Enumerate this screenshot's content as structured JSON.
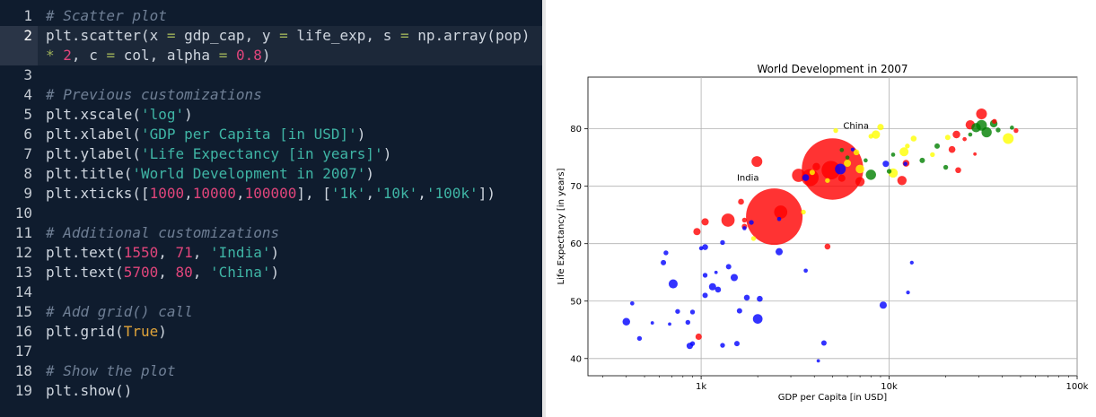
{
  "editor": {
    "lines": [
      {
        "n": "1",
        "tokens": [
          [
            "comment",
            "# Scatter plot"
          ]
        ]
      },
      {
        "n": "2",
        "active": true,
        "tokens": [
          [
            "plain",
            "plt.scatter("
          ],
          [
            "plain",
            "x "
          ],
          [
            "op",
            "="
          ],
          [
            "plain",
            " gdp_cap, y "
          ],
          [
            "op",
            "="
          ],
          [
            "plain",
            " life_exp, s "
          ],
          [
            "op",
            "="
          ],
          [
            "plain",
            " np.array(pop)"
          ]
        ]
      },
      {
        "n": "",
        "active": true,
        "tokens": [
          [
            "op",
            "*"
          ],
          [
            "plain",
            " "
          ],
          [
            "num",
            "2"
          ],
          [
            "plain",
            ", c "
          ],
          [
            "op",
            "="
          ],
          [
            "plain",
            " col, alpha "
          ],
          [
            "op",
            "="
          ],
          [
            "plain",
            " "
          ],
          [
            "num",
            "0.8"
          ],
          [
            "plain",
            ")"
          ]
        ]
      },
      {
        "n": "3",
        "tokens": []
      },
      {
        "n": "4",
        "tokens": [
          [
            "comment",
            "# Previous customizations"
          ]
        ]
      },
      {
        "n": "5",
        "tokens": [
          [
            "plain",
            "plt.xscale("
          ],
          [
            "str",
            "'log'"
          ],
          [
            "plain",
            ")"
          ]
        ]
      },
      {
        "n": "6",
        "tokens": [
          [
            "plain",
            "plt.xlabel("
          ],
          [
            "str",
            "'GDP per Capita [in USD]'"
          ],
          [
            "plain",
            ")"
          ]
        ]
      },
      {
        "n": "7",
        "tokens": [
          [
            "plain",
            "plt.ylabel("
          ],
          [
            "str",
            "'Life Expectancy [in years]'"
          ],
          [
            "plain",
            ")"
          ]
        ]
      },
      {
        "n": "8",
        "tokens": [
          [
            "plain",
            "plt.title("
          ],
          [
            "str",
            "'World Development in 2007'"
          ],
          [
            "plain",
            ")"
          ]
        ]
      },
      {
        "n": "9",
        "tokens": [
          [
            "plain",
            "plt.xticks(["
          ],
          [
            "num",
            "1000"
          ],
          [
            "plain",
            ","
          ],
          [
            "num",
            "10000"
          ],
          [
            "plain",
            ","
          ],
          [
            "num",
            "100000"
          ],
          [
            "plain",
            "], ["
          ],
          [
            "str",
            "'1k'"
          ],
          [
            "plain",
            ","
          ],
          [
            "str",
            "'10k'"
          ],
          [
            "plain",
            ","
          ],
          [
            "str",
            "'100k'"
          ],
          [
            "plain",
            "])"
          ]
        ]
      },
      {
        "n": "10",
        "tokens": []
      },
      {
        "n": "11",
        "tokens": [
          [
            "comment",
            "# Additional customizations"
          ]
        ]
      },
      {
        "n": "12",
        "tokens": [
          [
            "plain",
            "plt.text("
          ],
          [
            "num",
            "1550"
          ],
          [
            "plain",
            ", "
          ],
          [
            "num",
            "71"
          ],
          [
            "plain",
            ", "
          ],
          [
            "str",
            "'India'"
          ],
          [
            "plain",
            ")"
          ]
        ]
      },
      {
        "n": "13",
        "tokens": [
          [
            "plain",
            "plt.text("
          ],
          [
            "num",
            "5700"
          ],
          [
            "plain",
            ", "
          ],
          [
            "num",
            "80"
          ],
          [
            "plain",
            ", "
          ],
          [
            "str",
            "'China'"
          ],
          [
            "plain",
            ")"
          ]
        ]
      },
      {
        "n": "14",
        "tokens": []
      },
      {
        "n": "15",
        "tokens": [
          [
            "comment",
            "# Add grid() call"
          ]
        ]
      },
      {
        "n": "16",
        "tokens": [
          [
            "plain",
            "plt.grid("
          ],
          [
            "kw",
            "True"
          ],
          [
            "plain",
            ")"
          ]
        ]
      },
      {
        "n": "17",
        "tokens": []
      },
      {
        "n": "18",
        "tokens": [
          [
            "comment",
            "# Show the plot"
          ]
        ]
      },
      {
        "n": "19",
        "tokens": [
          [
            "plain",
            "plt.show()"
          ]
        ]
      }
    ]
  },
  "chart_data": {
    "type": "scatter",
    "title": "World Development in 2007",
    "xlabel": "GDP per Capita [in USD]",
    "ylabel": "Life Expectancy [in years]",
    "xscale": "log",
    "xlim": [
      250,
      100000
    ],
    "ylim": [
      37,
      89
    ],
    "xticks": [
      1000,
      10000,
      100000
    ],
    "xtick_labels": [
      "1k",
      "10k",
      "100k"
    ],
    "yticks": [
      40,
      50,
      60,
      70,
      80
    ],
    "grid": true,
    "annotations": [
      {
        "text": "India",
        "x": 1550,
        "y": 71
      },
      {
        "text": "China",
        "x": 5700,
        "y": 80
      }
    ],
    "colors": {
      "red": "#ff0000",
      "blue": "#0000ff",
      "green": "#008000",
      "yellow": "#ffff00"
    },
    "points": [
      {
        "x": 2450,
        "y": 64.7,
        "s": 1100,
        "c": "red"
      },
      {
        "x": 5000,
        "y": 73.0,
        "s": 1300,
        "c": "red"
      },
      {
        "x": 4900,
        "y": 72.8,
        "s": 120,
        "c": "red"
      },
      {
        "x": 2650,
        "y": 65.5,
        "s": 60,
        "c": "red"
      },
      {
        "x": 1980,
        "y": 74.3,
        "s": 40,
        "c": "red"
      },
      {
        "x": 3300,
        "y": 71.9,
        "s": 60,
        "c": "red"
      },
      {
        "x": 3800,
        "y": 71.5,
        "s": 100,
        "c": "red"
      },
      {
        "x": 4100,
        "y": 73.4,
        "s": 20,
        "c": "red"
      },
      {
        "x": 5600,
        "y": 71.4,
        "s": 18,
        "c": "red"
      },
      {
        "x": 7000,
        "y": 70.8,
        "s": 30,
        "c": "red"
      },
      {
        "x": 11700,
        "y": 71.0,
        "s": 30,
        "c": "red"
      },
      {
        "x": 12300,
        "y": 74.0,
        "s": 16,
        "c": "red"
      },
      {
        "x": 1390,
        "y": 64.1,
        "s": 60,
        "c": "red"
      },
      {
        "x": 1630,
        "y": 67.3,
        "s": 12,
        "c": "red"
      },
      {
        "x": 1050,
        "y": 63.8,
        "s": 18,
        "c": "red"
      },
      {
        "x": 950,
        "y": 62.1,
        "s": 18,
        "c": "red"
      },
      {
        "x": 4700,
        "y": 59.5,
        "s": 12,
        "c": "red"
      },
      {
        "x": 970,
        "y": 43.8,
        "s": 14,
        "c": "red"
      },
      {
        "x": 1700,
        "y": 63.0,
        "s": 10,
        "c": "red"
      },
      {
        "x": 1700,
        "y": 64.1,
        "s": 8,
        "c": "red"
      },
      {
        "x": 31000,
        "y": 82.6,
        "s": 40,
        "c": "red"
      },
      {
        "x": 27000,
        "y": 80.7,
        "s": 30,
        "c": "red"
      },
      {
        "x": 22800,
        "y": 79.0,
        "s": 20,
        "c": "red"
      },
      {
        "x": 21600,
        "y": 76.4,
        "s": 16,
        "c": "red"
      },
      {
        "x": 23300,
        "y": 72.8,
        "s": 12,
        "c": "red"
      },
      {
        "x": 36300,
        "y": 81.3,
        "s": 8,
        "c": "red"
      },
      {
        "x": 25200,
        "y": 78.2,
        "s": 6,
        "c": "red"
      },
      {
        "x": 28600,
        "y": 75.6,
        "s": 4,
        "c": "red"
      },
      {
        "x": 47300,
        "y": 79.7,
        "s": 8,
        "c": "red"
      },
      {
        "x": 400,
        "y": 46.4,
        "s": 20,
        "c": "blue"
      },
      {
        "x": 470,
        "y": 43.5,
        "s": 8,
        "c": "blue"
      },
      {
        "x": 430,
        "y": 49.6,
        "s": 6,
        "c": "blue"
      },
      {
        "x": 710,
        "y": 53.0,
        "s": 28,
        "c": "blue"
      },
      {
        "x": 630,
        "y": 56.7,
        "s": 10,
        "c": "blue"
      },
      {
        "x": 650,
        "y": 58.4,
        "s": 8,
        "c": "blue"
      },
      {
        "x": 1050,
        "y": 59.4,
        "s": 12,
        "c": "blue"
      },
      {
        "x": 1150,
        "y": 52.5,
        "s": 18,
        "c": "blue"
      },
      {
        "x": 1230,
        "y": 52.0,
        "s": 12,
        "c": "blue"
      },
      {
        "x": 1050,
        "y": 51.0,
        "s": 10,
        "c": "blue"
      },
      {
        "x": 1500,
        "y": 54.1,
        "s": 18,
        "c": "blue"
      },
      {
        "x": 1400,
        "y": 56.0,
        "s": 10,
        "c": "blue"
      },
      {
        "x": 1300,
        "y": 60.2,
        "s": 8,
        "c": "blue"
      },
      {
        "x": 1050,
        "y": 54.5,
        "s": 8,
        "c": "blue"
      },
      {
        "x": 1600,
        "y": 48.3,
        "s": 10,
        "c": "blue"
      },
      {
        "x": 1750,
        "y": 50.6,
        "s": 12,
        "c": "blue"
      },
      {
        "x": 2050,
        "y": 50.4,
        "s": 12,
        "c": "blue"
      },
      {
        "x": 2000,
        "y": 46.9,
        "s": 32,
        "c": "blue"
      },
      {
        "x": 1550,
        "y": 42.6,
        "s": 10,
        "c": "blue"
      },
      {
        "x": 1300,
        "y": 42.3,
        "s": 8,
        "c": "blue"
      },
      {
        "x": 870,
        "y": 42.2,
        "s": 14,
        "c": "blue"
      },
      {
        "x": 900,
        "y": 42.6,
        "s": 8,
        "c": "blue"
      },
      {
        "x": 850,
        "y": 46.3,
        "s": 8,
        "c": "blue"
      },
      {
        "x": 750,
        "y": 48.2,
        "s": 8,
        "c": "blue"
      },
      {
        "x": 900,
        "y": 48.1,
        "s": 8,
        "c": "blue"
      },
      {
        "x": 2600,
        "y": 58.6,
        "s": 18,
        "c": "blue"
      },
      {
        "x": 3600,
        "y": 55.3,
        "s": 6,
        "c": "blue"
      },
      {
        "x": 4500,
        "y": 42.7,
        "s": 10,
        "c": "blue"
      },
      {
        "x": 9300,
        "y": 49.3,
        "s": 18,
        "c": "blue"
      },
      {
        "x": 5500,
        "y": 73.0,
        "s": 40,
        "c": "blue"
      },
      {
        "x": 3600,
        "y": 71.5,
        "s": 16,
        "c": "blue"
      },
      {
        "x": 9600,
        "y": 73.9,
        "s": 14,
        "c": "blue"
      },
      {
        "x": 1850,
        "y": 63.7,
        "s": 8,
        "c": "blue"
      },
      {
        "x": 1700,
        "y": 62.7,
        "s": 6,
        "c": "blue"
      },
      {
        "x": 1000,
        "y": 59.2,
        "s": 6,
        "c": "blue"
      },
      {
        "x": 2600,
        "y": 64.3,
        "s": 6,
        "c": "blue"
      },
      {
        "x": 12600,
        "y": 51.5,
        "s": 5,
        "c": "blue"
      },
      {
        "x": 13200,
        "y": 56.7,
        "s": 5,
        "c": "blue"
      },
      {
        "x": 6400,
        "y": 76.4,
        "s": 5,
        "c": "blue"
      },
      {
        "x": 12200,
        "y": 73.9,
        "s": 6,
        "c": "blue"
      },
      {
        "x": 4200,
        "y": 39.6,
        "s": 4,
        "c": "blue"
      },
      {
        "x": 680,
        "y": 46.0,
        "s": 4,
        "c": "blue"
      },
      {
        "x": 550,
        "y": 46.2,
        "s": 4,
        "c": "blue"
      },
      {
        "x": 1200,
        "y": 55.0,
        "s": 4,
        "c": "blue"
      },
      {
        "x": 8000,
        "y": 72.0,
        "s": 36,
        "c": "green"
      },
      {
        "x": 31000,
        "y": 80.6,
        "s": 40,
        "c": "green"
      },
      {
        "x": 33000,
        "y": 79.4,
        "s": 36,
        "c": "green"
      },
      {
        "x": 29000,
        "y": 80.2,
        "s": 30,
        "c": "green"
      },
      {
        "x": 36000,
        "y": 80.9,
        "s": 20,
        "c": "green"
      },
      {
        "x": 18000,
        "y": 77.0,
        "s": 10,
        "c": "green"
      },
      {
        "x": 15000,
        "y": 74.5,
        "s": 10,
        "c": "green"
      },
      {
        "x": 20000,
        "y": 73.3,
        "s": 8,
        "c": "green"
      },
      {
        "x": 10000,
        "y": 72.6,
        "s": 8,
        "c": "green"
      },
      {
        "x": 5600,
        "y": 76.3,
        "s": 6,
        "c": "green"
      },
      {
        "x": 7500,
        "y": 74.5,
        "s": 6,
        "c": "green"
      },
      {
        "x": 10500,
        "y": 75.5,
        "s": 6,
        "c": "green"
      },
      {
        "x": 38000,
        "y": 79.8,
        "s": 8,
        "c": "green"
      },
      {
        "x": 45000,
        "y": 80.2,
        "s": 6,
        "c": "green"
      },
      {
        "x": 27000,
        "y": 79.0,
        "s": 6,
        "c": "green"
      },
      {
        "x": 6000,
        "y": 75.0,
        "s": 6,
        "c": "green"
      },
      {
        "x": 43000,
        "y": 78.3,
        "s": 40,
        "c": "yellow"
      },
      {
        "x": 12000,
        "y": 76.0,
        "s": 28,
        "c": "yellow"
      },
      {
        "x": 10500,
        "y": 72.3,
        "s": 30,
        "c": "yellow"
      },
      {
        "x": 7000,
        "y": 73.0,
        "s": 26,
        "c": "yellow"
      },
      {
        "x": 6000,
        "y": 74.0,
        "s": 18,
        "c": "yellow"
      },
      {
        "x": 8500,
        "y": 79.0,
        "s": 24,
        "c": "yellow"
      },
      {
        "x": 9000,
        "y": 80.3,
        "s": 14,
        "c": "yellow"
      },
      {
        "x": 13500,
        "y": 78.3,
        "s": 12,
        "c": "yellow"
      },
      {
        "x": 6700,
        "y": 75.9,
        "s": 12,
        "c": "yellow"
      },
      {
        "x": 3900,
        "y": 72.4,
        "s": 10,
        "c": "yellow"
      },
      {
        "x": 3500,
        "y": 65.5,
        "s": 8,
        "c": "yellow"
      },
      {
        "x": 1900,
        "y": 60.9,
        "s": 8,
        "c": "yellow"
      },
      {
        "x": 4700,
        "y": 71.0,
        "s": 8,
        "c": "yellow"
      },
      {
        "x": 17000,
        "y": 75.5,
        "s": 8,
        "c": "yellow"
      },
      {
        "x": 20500,
        "y": 78.5,
        "s": 10,
        "c": "yellow"
      },
      {
        "x": 12500,
        "y": 77.0,
        "s": 8,
        "c": "yellow"
      },
      {
        "x": 8000,
        "y": 78.7,
        "s": 8,
        "c": "yellow"
      },
      {
        "x": 5200,
        "y": 79.7,
        "s": 8,
        "c": "yellow"
      }
    ]
  }
}
